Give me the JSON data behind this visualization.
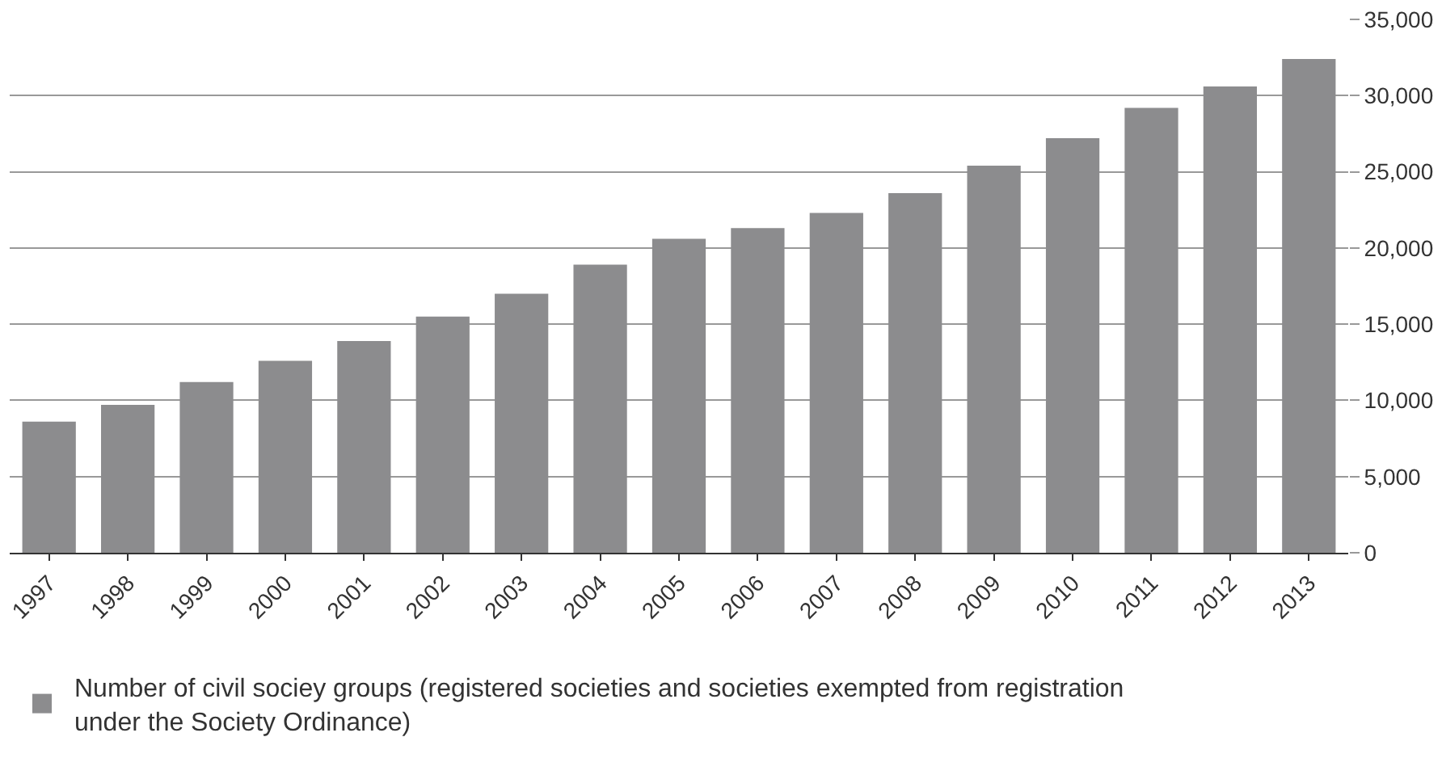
{
  "chart_data": {
    "type": "bar",
    "categories": [
      "1997",
      "1998",
      "1999",
      "2000",
      "2001",
      "2002",
      "2003",
      "2004",
      "2005",
      "2006",
      "2007",
      "2008",
      "2009",
      "2010",
      "2011",
      "2012",
      "2013"
    ],
    "series": [
      {
        "name": "Number of civil sociey groups (registered societies and societies exempted from registration under the Society Ordinance)",
        "color": "#8c8c8e",
        "values": [
          8600,
          9700,
          11200,
          12600,
          13900,
          15500,
          17000,
          18900,
          20600,
          21300,
          22300,
          23600,
          25400,
          27200,
          29200,
          30600,
          32400
        ]
      }
    ],
    "ylim": [
      0,
      35000
    ],
    "yticks": [
      {
        "value": 0,
        "label": "0"
      },
      {
        "value": 5000,
        "label": "5,000"
      },
      {
        "value": 10000,
        "label": "10,000"
      },
      {
        "value": 15000,
        "label": "15,000"
      },
      {
        "value": 20000,
        "label": "20,000"
      },
      {
        "value": 25000,
        "label": "25,000"
      },
      {
        "value": 30000,
        "label": "30,000"
      },
      {
        "value": 35000,
        "label": "35,000"
      }
    ],
    "grid": "y",
    "legend": "bottom left"
  }
}
